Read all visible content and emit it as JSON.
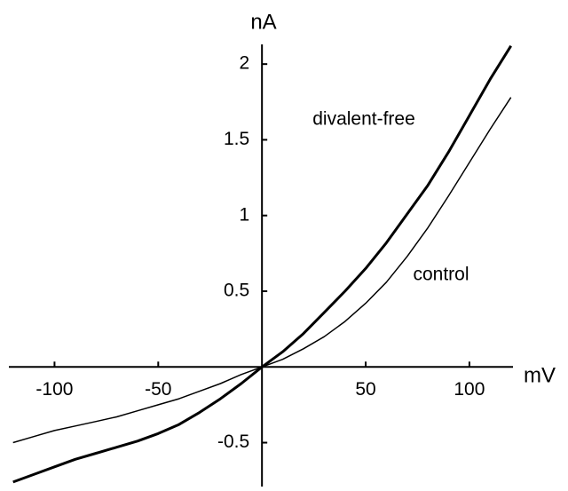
{
  "chart_data": {
    "type": "line",
    "x_label": "mV",
    "y_label": "nA",
    "x": [
      -120,
      -110,
      -100,
      -90,
      -80,
      -70,
      -60,
      -50,
      -40,
      -30,
      -20,
      -10,
      0,
      10,
      20,
      30,
      40,
      50,
      60,
      70,
      80,
      90,
      100,
      110,
      120
    ],
    "series": [
      {
        "name": "divalent-free",
        "color": "#000000",
        "values": [
          -0.76,
          -0.71,
          -0.66,
          -0.61,
          -0.57,
          -0.53,
          -0.49,
          -0.44,
          -0.38,
          -0.3,
          -0.21,
          -0.11,
          0,
          0.1,
          0.22,
          0.36,
          0.5,
          0.65,
          0.82,
          1.01,
          1.2,
          1.42,
          1.66,
          1.9,
          2.12
        ]
      },
      {
        "name": "control",
        "color": "#000000",
        "values": [
          -0.5,
          -0.46,
          -0.42,
          -0.39,
          -0.36,
          -0.33,
          -0.29,
          -0.25,
          -0.21,
          -0.16,
          -0.11,
          -0.05,
          0,
          0.05,
          0.12,
          0.2,
          0.3,
          0.42,
          0.56,
          0.73,
          0.92,
          1.13,
          1.35,
          1.57,
          1.78
        ]
      }
    ],
    "xlim": [
      -122,
      121
    ],
    "ylim": [
      -0.79,
      2.13
    ],
    "xticks": [
      -100,
      -50,
      50,
      100
    ],
    "yticks": [
      -0.5,
      0.5,
      1,
      1.5,
      2
    ]
  }
}
